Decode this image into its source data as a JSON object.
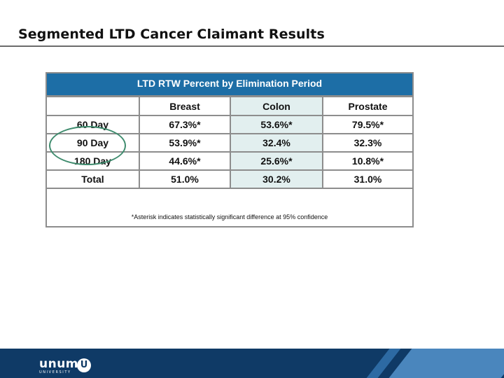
{
  "slide": {
    "title": "Segmented LTD Cancer Claimant Results"
  },
  "table": {
    "title": "LTD RTW Percent by Elimination Period",
    "columns": [
      "",
      "Breast",
      "Colon",
      "Prostate"
    ],
    "rows": [
      {
        "label": "60 Day",
        "breast": "67.3%*",
        "colon": "53.6%*",
        "prostate": "79.5%*"
      },
      {
        "label": "90 Day",
        "breast": "53.9%*",
        "colon": "32.4%",
        "prostate": "32.3%"
      },
      {
        "label": "180 Day",
        "breast": "44.6%*",
        "colon": "25.6%*",
        "prostate": "10.8%*"
      },
      {
        "label": "Total",
        "breast": "51.0%",
        "colon": "30.2%",
        "prostate": "31.0%"
      }
    ],
    "footnote": "*Asterisk indicates statistically significant difference at 95% confidence"
  },
  "annotation": {
    "circle_color": "#3f8c6e",
    "circled_row": "90 Day"
  },
  "footer": {
    "logo_text": "unum",
    "logo_subtext": "UNIVERSITY",
    "logo_badge": "U",
    "bar_color": "#0f3a66"
  }
}
